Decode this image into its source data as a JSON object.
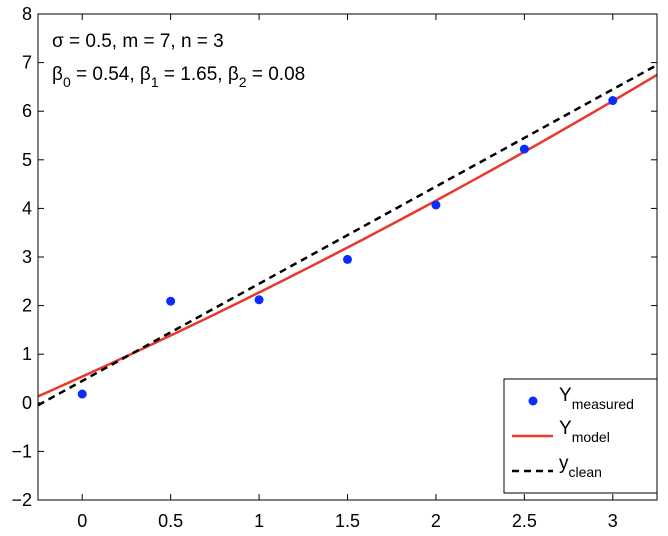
{
  "chart_data": {
    "type": "line",
    "title": "",
    "xlabel": "",
    "ylabel": "",
    "xlim": [
      -0.25,
      3.25
    ],
    "ylim": [
      -2,
      8
    ],
    "xticks": [
      0,
      0.5,
      1,
      1.5,
      2,
      2.5,
      3
    ],
    "xtick_labels": [
      "0",
      "0.5",
      "1",
      "1.5",
      "2",
      "2.5",
      "3"
    ],
    "yticks": [
      -2,
      -1,
      0,
      1,
      2,
      3,
      4,
      5,
      6,
      7,
      8
    ],
    "ytick_labels": [
      "−2",
      "−1",
      "0",
      "1",
      "2",
      "3",
      "4",
      "5",
      "6",
      "7",
      "8"
    ],
    "grid": false,
    "legend_position": "bottom-right",
    "annotations": {
      "line1": "σ = 0.5, m = 7, n = 3",
      "line2_parts": [
        {
          "t": "β"
        },
        {
          "t": "0",
          "sub": true
        },
        {
          "t": " = 0.54, β"
        },
        {
          "t": "1",
          "sub": true
        },
        {
          "t": " = 1.65, β"
        },
        {
          "t": "2",
          "sub": true
        },
        {
          "t": " = 0.08"
        }
      ]
    },
    "series": [
      {
        "name": "Y_measured",
        "label_main": "Y",
        "label_sub": "measured",
        "kind": "scatter",
        "color": "#0a2cff",
        "x": [
          0,
          0.5,
          1,
          1.5,
          2,
          2.5,
          3
        ],
        "y": [
          0.18,
          2.09,
          2.12,
          2.95,
          4.07,
          5.22,
          6.22
        ]
      },
      {
        "name": "Y_model",
        "label_main": "Y",
        "label_sub": "model",
        "kind": "curve",
        "color": "#e8392b",
        "style": "solid",
        "coefficients": [
          0.54,
          1.65,
          0.08
        ]
      },
      {
        "name": "y_clean",
        "label_main": "y",
        "label_sub": "clean",
        "kind": "line",
        "color": "#000000",
        "style": "dashed",
        "x": [
          -0.25,
          3.25
        ],
        "y": [
          -0.05,
          6.95
        ]
      }
    ]
  }
}
